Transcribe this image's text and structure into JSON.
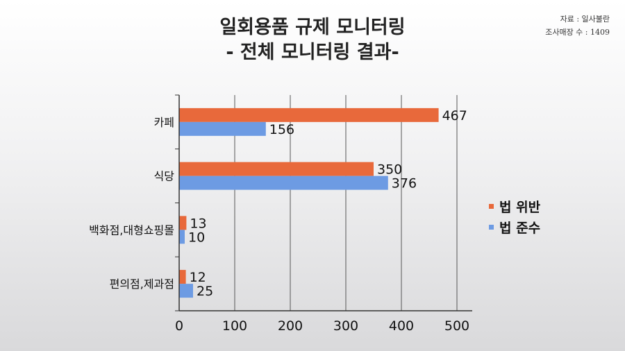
{
  "title_line1": "일회용품 규제 모니터링",
  "title_line2": "- 전체 모니터링 결과-",
  "source_line1": "자료 : 일사불란",
  "source_line2": "조사매장 수 : 1409",
  "colors": {
    "violation": "#E8693B",
    "compliance": "#6D9BE3",
    "grid": "#555555",
    "axis": "#333333"
  },
  "chart_data": {
    "type": "bar",
    "orientation": "horizontal",
    "categories": [
      "카페",
      "식당",
      "백화점,대형쇼핑몰",
      "편의점,제과점"
    ],
    "series": [
      {
        "name": "법 위반",
        "values": [
          467,
          350,
          13,
          12
        ]
      },
      {
        "name": "법 준수",
        "values": [
          156,
          376,
          10,
          25
        ]
      }
    ],
    "xlim": [
      0,
      500
    ],
    "xticks": [
      "0",
      "100",
      "200",
      "300",
      "400",
      "500"
    ],
    "grid": "vertical",
    "legend": "right"
  }
}
